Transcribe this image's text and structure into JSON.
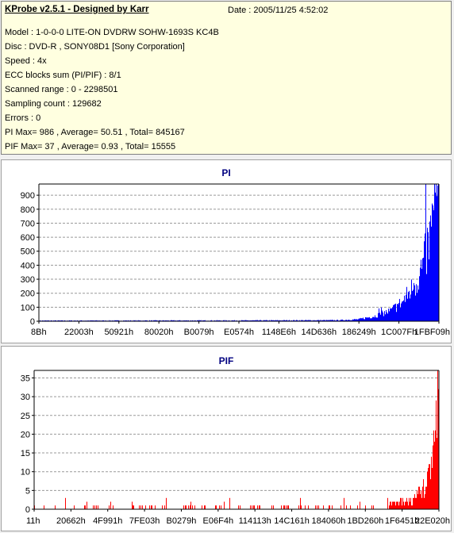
{
  "header": {
    "title": "KProbe v2.5.1 - Designed by Karr",
    "date": "Date : 2005/11/25 4:52:02"
  },
  "info_lines": [
    "Model : 1-0-0-0 LITE-ON DVDRW SOHW-1693S KC4B",
    "Disc : DVD-R , SONY08D1 [Sony Corporation]",
    "Speed : 4x",
    "ECC blocks sum (PI/PIF) : 8/1",
    "Scanned range : 0 - 2298501",
    "Sampling count : 129682",
    "Errors : 0",
    "PI Max= 986 , Average= 50.51 , Total= 845167",
    "PIF Max= 37 , Average= 0.93 , Total= 15555"
  ],
  "chart_data": [
    {
      "type": "area",
      "title": "PI",
      "color": "#0000ff",
      "ylim": [
        0,
        980
      ],
      "yticks": [
        0,
        100,
        200,
        300,
        400,
        500,
        600,
        700,
        800,
        900
      ],
      "xtick_labels": [
        "8Bh",
        "22003h",
        "50921h",
        "80020h",
        "B0079h",
        "E0574h",
        "1148E6h",
        "14D636h",
        "186249h",
        "1C007Fh",
        "1FBF09h"
      ],
      "grid": true,
      "profile": [
        [
          0.0,
          5
        ],
        [
          0.5,
          6
        ],
        [
          0.75,
          8
        ],
        [
          0.8,
          15
        ],
        [
          0.84,
          40
        ],
        [
          0.88,
          80
        ],
        [
          0.91,
          150
        ],
        [
          0.94,
          280
        ],
        [
          0.96,
          420
        ],
        [
          0.98,
          650
        ],
        [
          0.995,
          900
        ],
        [
          1.0,
          980
        ]
      ]
    },
    {
      "type": "bar",
      "title": "PIF",
      "color": "#ff0000",
      "ylim": [
        0,
        37
      ],
      "yticks": [
        0,
        5,
        10,
        15,
        20,
        25,
        30,
        35
      ],
      "xtick_labels": [
        "11h",
        "20662h",
        "4F991h",
        "7FE03h",
        "B0279h",
        "E06F4h",
        "114113h",
        "14C161h",
        "184060h",
        "1BD260h",
        "1F6451h",
        "22E020h"
      ],
      "grid": true,
      "profile": [
        [
          0.0,
          0
        ],
        [
          0.85,
          1
        ],
        [
          0.9,
          2
        ],
        [
          0.94,
          3
        ],
        [
          0.96,
          6
        ],
        [
          0.98,
          12
        ],
        [
          0.99,
          20
        ],
        [
          1.0,
          37
        ]
      ]
    }
  ]
}
